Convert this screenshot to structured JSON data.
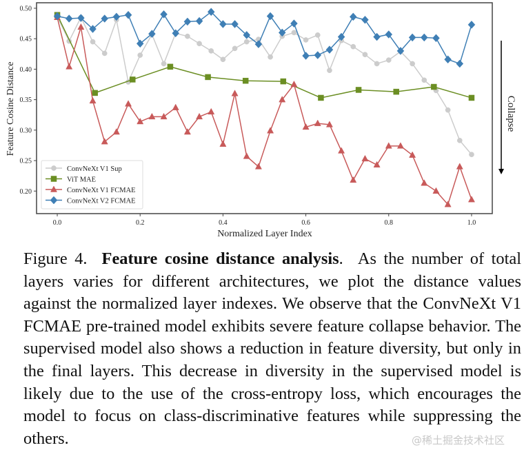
{
  "chart_data": {
    "type": "line",
    "title": "",
    "xlabel": "Normalized Layer Index",
    "ylabel": "Feature Cosine Distance",
    "xlim": [
      -0.05,
      1.05
    ],
    "ylim": [
      0.163,
      0.509
    ],
    "xticks": [
      0.0,
      0.2,
      0.4,
      0.6,
      0.8,
      1.0
    ],
    "xtick_labels": [
      "0.0",
      "0.2",
      "0.4",
      "0.6",
      "0.8",
      "1.0"
    ],
    "yticks": [
      0.2,
      0.25,
      0.3,
      0.35,
      0.4,
      0.45,
      0.5
    ],
    "ytick_labels": [
      "0.20",
      "0.25",
      "0.30",
      "0.35",
      "0.40",
      "0.45",
      "0.50"
    ],
    "grid": false,
    "legend_position": "bottom-left",
    "annotation": {
      "text": "Collapse",
      "arrow": "down",
      "placement": "right of plot"
    },
    "series": [
      {
        "name": "ConvNeXt V1 Sup",
        "color": "#cccccc",
        "marker": "circle",
        "num_points": 36,
        "values": [
          0.486,
          0.446,
          0.485,
          0.445,
          0.426,
          0.481,
          0.379,
          0.423,
          0.457,
          0.409,
          0.459,
          0.454,
          0.442,
          0.43,
          0.416,
          0.434,
          0.445,
          0.449,
          0.42,
          0.454,
          0.46,
          0.448,
          0.456,
          0.398,
          0.447,
          0.437,
          0.424,
          0.409,
          0.415,
          0.429,
          0.409,
          0.382,
          0.365,
          0.333,
          0.283,
          0.26
        ]
      },
      {
        "name": "ViT MAE",
        "color": "#6b8e23",
        "marker": "square",
        "num_points": 12,
        "values": [
          0.489,
          0.361,
          0.383,
          0.404,
          0.387,
          0.381,
          0.38,
          0.353,
          0.366,
          0.363,
          0.371,
          0.353
        ]
      },
      {
        "name": "ConvNeXt V1 FCMAE",
        "color": "#c85a5a",
        "marker": "triangle",
        "num_points": 36,
        "values": [
          0.485,
          0.404,
          0.469,
          0.348,
          0.281,
          0.297,
          0.343,
          0.314,
          0.322,
          0.322,
          0.337,
          0.297,
          0.322,
          0.33,
          0.277,
          0.36,
          0.257,
          0.24,
          0.299,
          0.35,
          0.375,
          0.305,
          0.311,
          0.309,
          0.266,
          0.218,
          0.253,
          0.243,
          0.274,
          0.274,
          0.259,
          0.213,
          0.2,
          0.178,
          0.24,
          0.186
        ]
      },
      {
        "name": "ConvNeXt V2 FCMAE",
        "color": "#3f7fb5",
        "marker": "diamond",
        "num_points": 36,
        "values": [
          0.487,
          0.483,
          0.484,
          0.466,
          0.483,
          0.486,
          0.489,
          0.442,
          0.458,
          0.49,
          0.459,
          0.478,
          0.479,
          0.494,
          0.474,
          0.474,
          0.456,
          0.441,
          0.487,
          0.46,
          0.475,
          0.422,
          0.423,
          0.432,
          0.453,
          0.486,
          0.481,
          0.453,
          0.457,
          0.43,
          0.452,
          0.452,
          0.451,
          0.416,
          0.409,
          0.473
        ]
      }
    ]
  },
  "caption": {
    "label": "Figure 4.",
    "title": "Feature cosine distance analysis",
    "title_suffix": ".",
    "body": "As the number of total layers varies for different architectures, we plot the distance values against the normalized layer indexes. We observe that the ConvNeXt V1 FCMAE pre-trained model exhibits severe feature collapse behavior. The supervised model also shows a reduction in feature diversity, but only in the final layers. This decrease in diversity in the supervised model is likely due to the use of the cross-entropy loss, which encourages the model to focus on class-discriminative features while suppressing the others."
  },
  "watermark": "@稀土掘金技术社区"
}
